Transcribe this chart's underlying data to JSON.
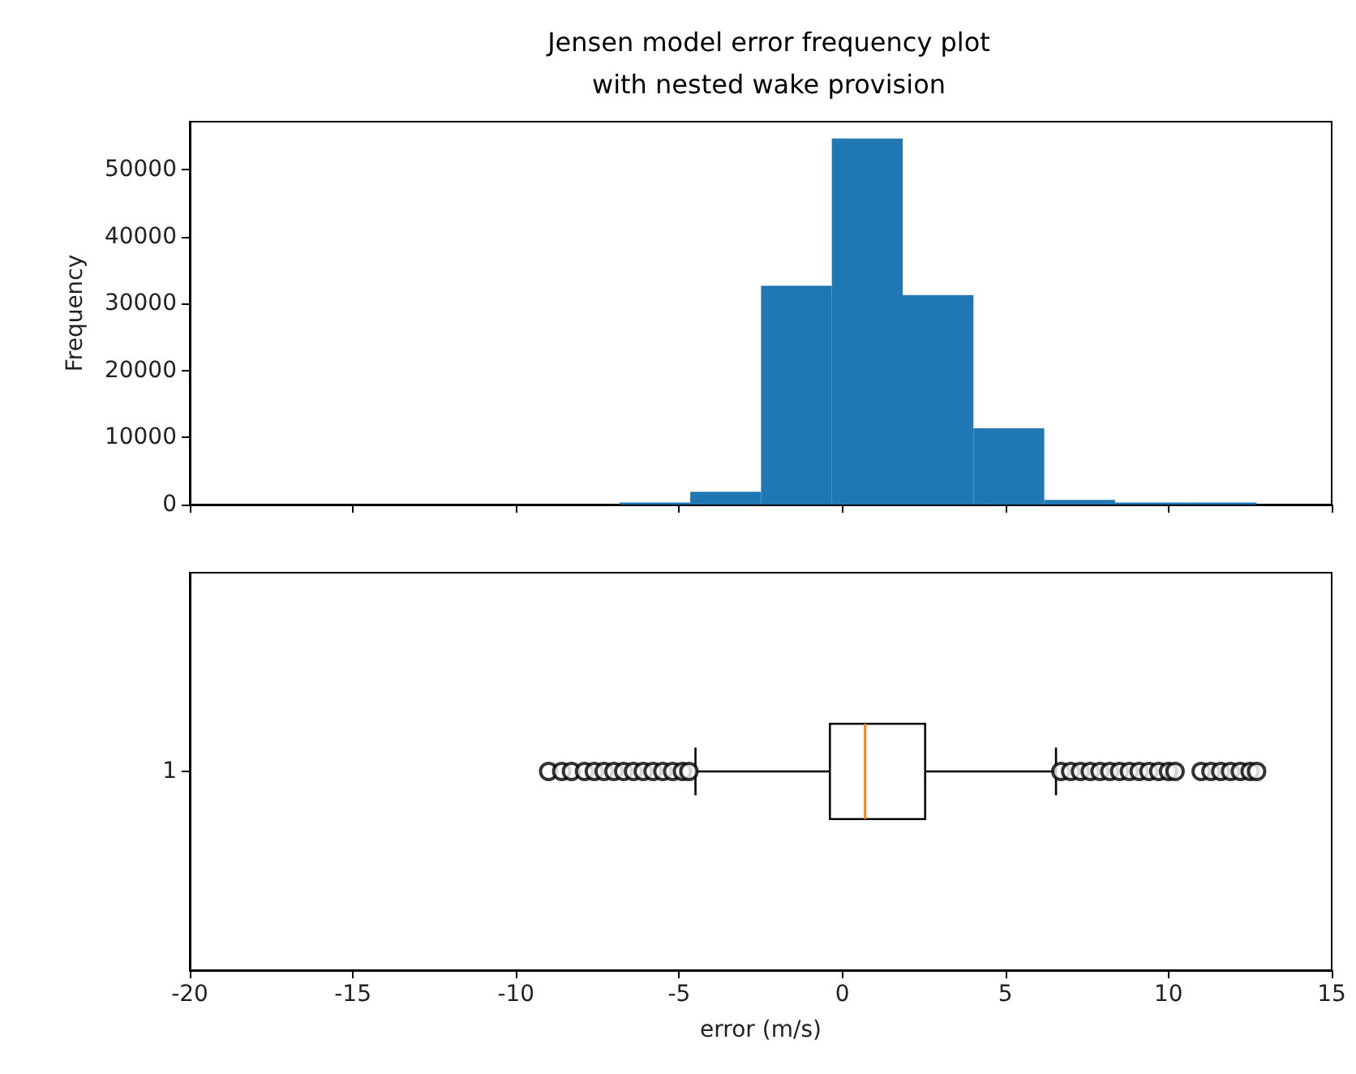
{
  "chart_data": [
    {
      "type": "histogram",
      "title": "Jensen model error frequency plot\nwith nested wake provision",
      "ylabel": "Frequency",
      "color": "#1f77b4",
      "bins": [
        -9.0,
        -6.83,
        -4.66,
        -2.49,
        -0.32,
        1.85,
        4.02,
        6.19,
        8.36,
        10.53,
        12.7
      ],
      "values": [
        0,
        300,
        1900,
        32700,
        54700,
        31300,
        11400,
        700,
        300,
        300
      ],
      "xlim": [
        -20,
        15
      ],
      "xticks": [
        -20,
        -15,
        -10,
        -5,
        0,
        5,
        10,
        15
      ],
      "ylim": [
        0,
        57200
      ],
      "yticks": [
        0,
        10000,
        20000,
        30000,
        40000,
        50000
      ],
      "tick_labels": "y",
      "grid": false
    },
    {
      "type": "box",
      "orientation": "horizontal",
      "xlabel": "error (m/s)",
      "categories": [
        "1"
      ],
      "color": "#000000",
      "marker": "circle",
      "boxes": [
        {
          "low": -4.5,
          "q1": -0.38,
          "median": 0.7,
          "q3": 2.54,
          "high": 6.55,
          "outliers": [
            -9.0,
            -8.6,
            -8.3,
            -7.9,
            -7.6,
            -7.3,
            -7.0,
            -6.7,
            -6.4,
            -6.1,
            -5.8,
            -5.5,
            -5.2,
            -4.9,
            -4.7,
            6.7,
            7.0,
            7.3,
            7.6,
            7.9,
            8.2,
            8.5,
            8.8,
            9.1,
            9.4,
            9.7,
            10.0,
            10.2,
            11.0,
            11.3,
            11.6,
            11.9,
            12.2,
            12.5,
            12.7
          ]
        }
      ],
      "xlim": [
        -20,
        15
      ],
      "xticks": [
        -20,
        -15,
        -10,
        -5,
        0,
        5,
        10,
        15
      ],
      "grid": false
    }
  ]
}
